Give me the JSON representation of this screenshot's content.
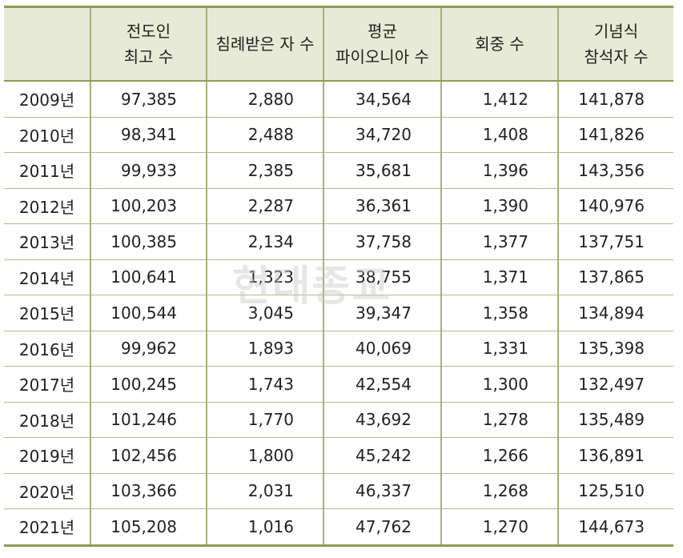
{
  "headers": [
    [
      ""
    ],
    [
      "전도인",
      "최고 수"
    ],
    [
      "침례받은 자 수"
    ],
    [
      "평균",
      "파이오니아 수"
    ],
    [
      "회중 수"
    ],
    [
      "기념식",
      "참석자 수"
    ]
  ],
  "rows": [
    [
      "2009년",
      "97,385",
      "2,880",
      "34,564",
      "1,412",
      "141,878"
    ],
    [
      "2010년",
      "98,341",
      "2,488",
      "34,720",
      "1,408",
      "141,826"
    ],
    [
      "2011년",
      "99,933",
      "2,385",
      "35,681",
      "1,396",
      "143,356"
    ],
    [
      "2012년",
      "100,203",
      "2,287",
      "36,361",
      "1,390",
      "140,976"
    ],
    [
      "2013년",
      "100,385",
      "2,134",
      "37,758",
      "1,377",
      "137,751"
    ],
    [
      "2014년",
      "100,641",
      "1,323",
      "38,755",
      "1,371",
      "137,865"
    ],
    [
      "2015년",
      "100,544",
      "3,045",
      "39,347",
      "1,358",
      "134,894"
    ],
    [
      "2016년",
      "99,962",
      "1,893",
      "40,069",
      "1,331",
      "135,398"
    ],
    [
      "2017년",
      "100,245",
      "1,743",
      "42,554",
      "1,300",
      "132,497"
    ],
    [
      "2018년",
      "101,246",
      "1,770",
      "43,692",
      "1,278",
      "135,489"
    ],
    [
      "2019년",
      "102,456",
      "1,800",
      "45,242",
      "1,266",
      "136,891"
    ],
    [
      "2020년",
      "103,366",
      "2,031",
      "46,337",
      "1,268",
      "125,510"
    ],
    [
      "2021년",
      "105,208",
      "1,016",
      "47,762",
      "1,270",
      "144,673"
    ]
  ],
  "watermark": "현대종교"
}
